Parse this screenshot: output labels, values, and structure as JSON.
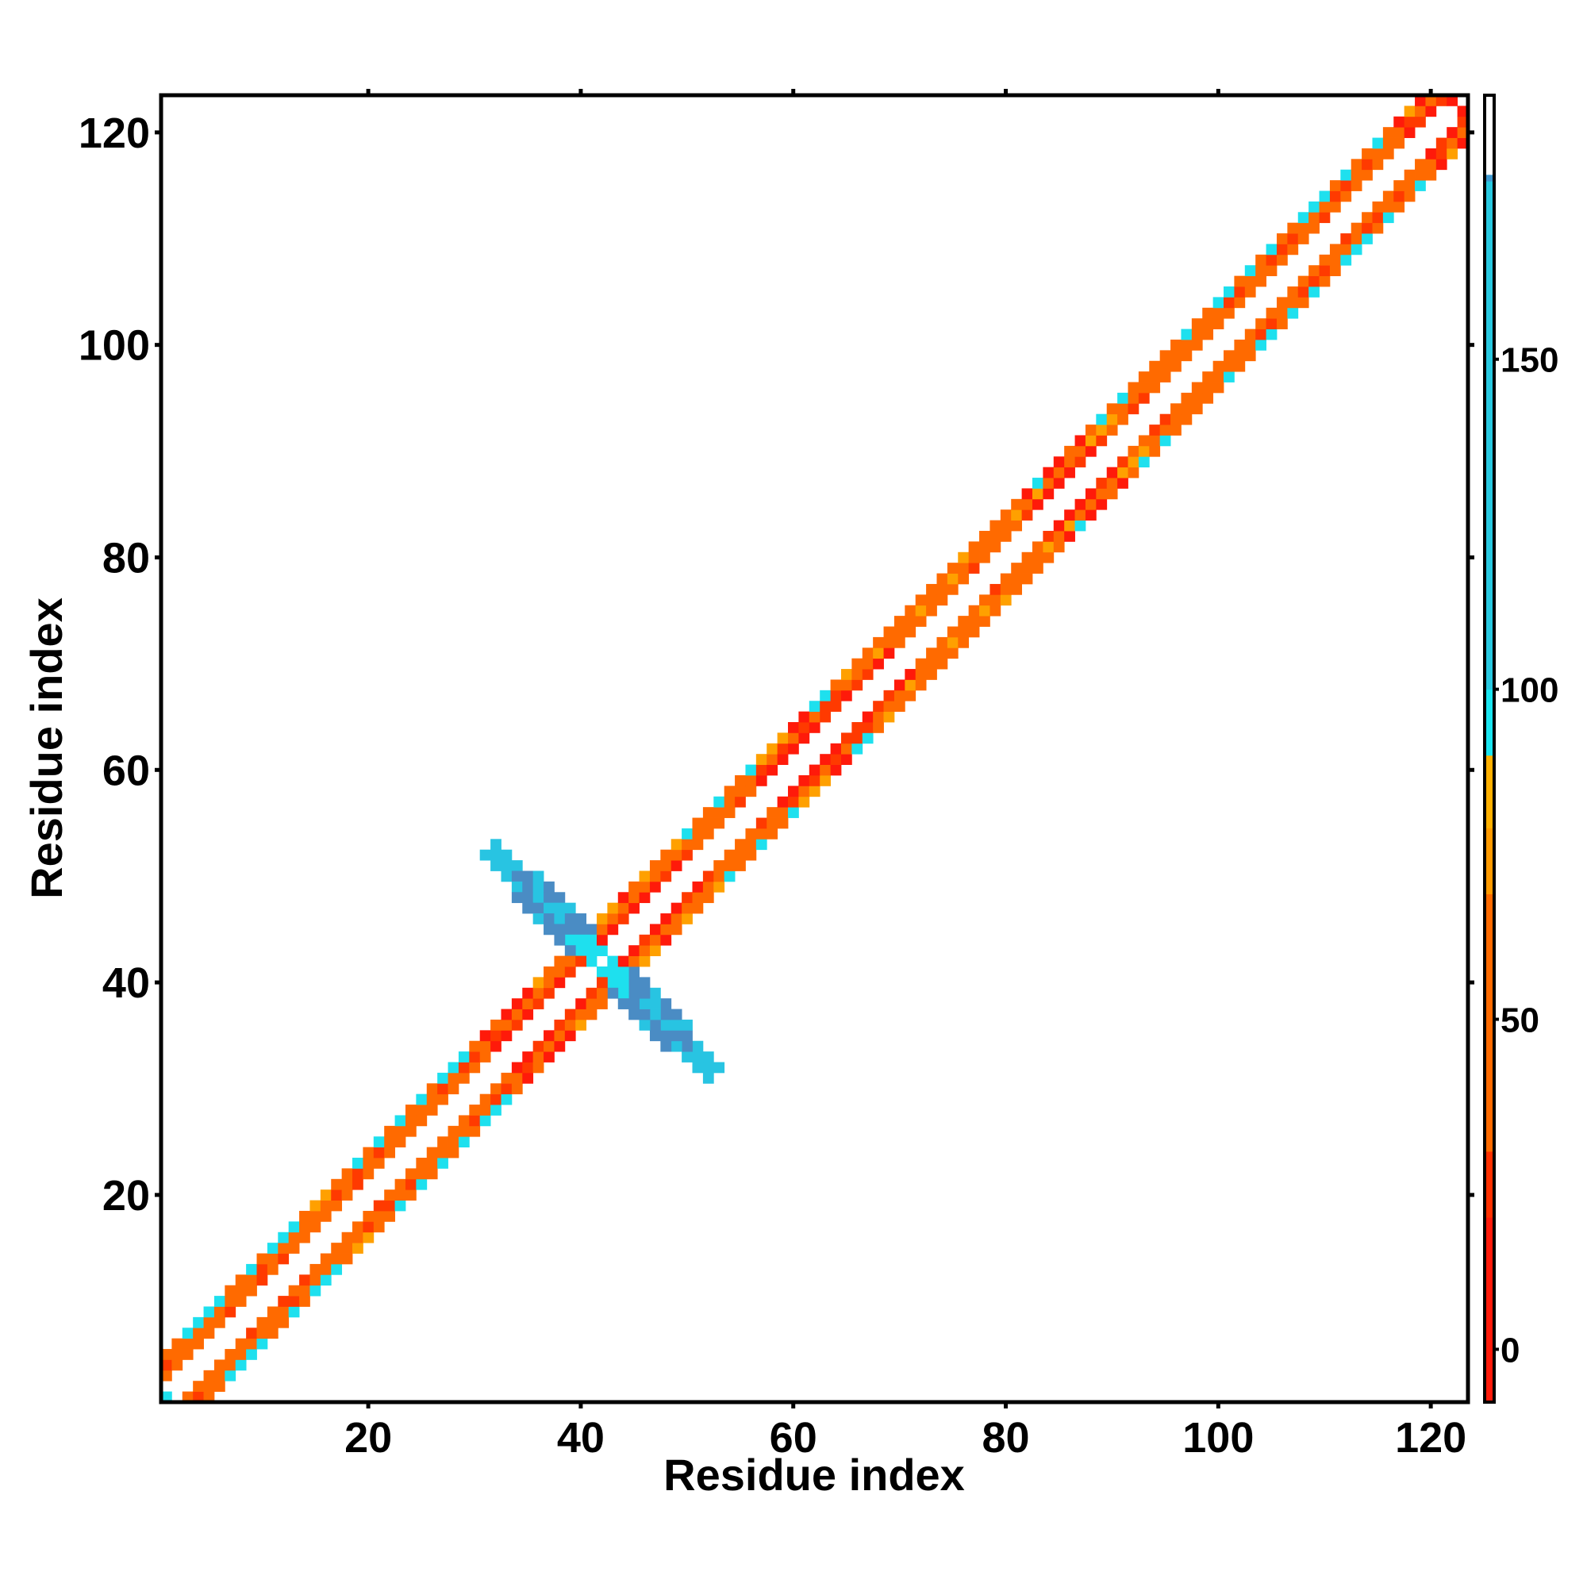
{
  "chart_data": {
    "type": "heatmap",
    "title": "",
    "xlabel": "Residue index",
    "ylabel": "Residue index",
    "xlim": [
      0.5,
      123.5
    ],
    "ylim": [
      0.5,
      123.5
    ],
    "xticks": [
      20,
      40,
      60,
      80,
      100,
      120
    ],
    "yticks": [
      20,
      40,
      60,
      80,
      100,
      120
    ],
    "grid": false,
    "colorbar": {
      "range": [
        -8,
        190
      ],
      "ticks": [
        0,
        50,
        100,
        150
      ],
      "bands": [
        {
          "from": -8,
          "to": 20,
          "color": "#ff1a0a"
        },
        {
          "from": 20,
          "to": 30,
          "color": "#ff3000"
        },
        {
          "from": 30,
          "to": 69,
          "color": "#ff6a00"
        },
        {
          "from": 69,
          "to": 79,
          "color": "#ff9a00"
        },
        {
          "from": 79,
          "to": 90,
          "color": "#ffb000"
        },
        {
          "from": 90,
          "to": 100,
          "color": "#19e5f0"
        },
        {
          "from": 100,
          "to": 177,
          "color": "#28c8e0"
        },
        {
          "from": 177,
          "to": 178,
          "color": "#3f99d0"
        },
        {
          "from": 178,
          "to": 190,
          "color": "#ffffff"
        }
      ]
    },
    "colors": {
      "red": "#ff1a0a",
      "red_orange": "#ff3a00",
      "orange": "#ff6a00",
      "light_orange": "#ffa000",
      "cyan": "#1ee0ee",
      "sky": "#28c4e2",
      "steel_blue": "#4a8cc4"
    },
    "description": "Symmetric residue-residue contact map; diagonal band width ~3-4 residues with an X-shaped anti-diagonal cross-strand region centred near residue 42 spanning residues 32-52."
  }
}
